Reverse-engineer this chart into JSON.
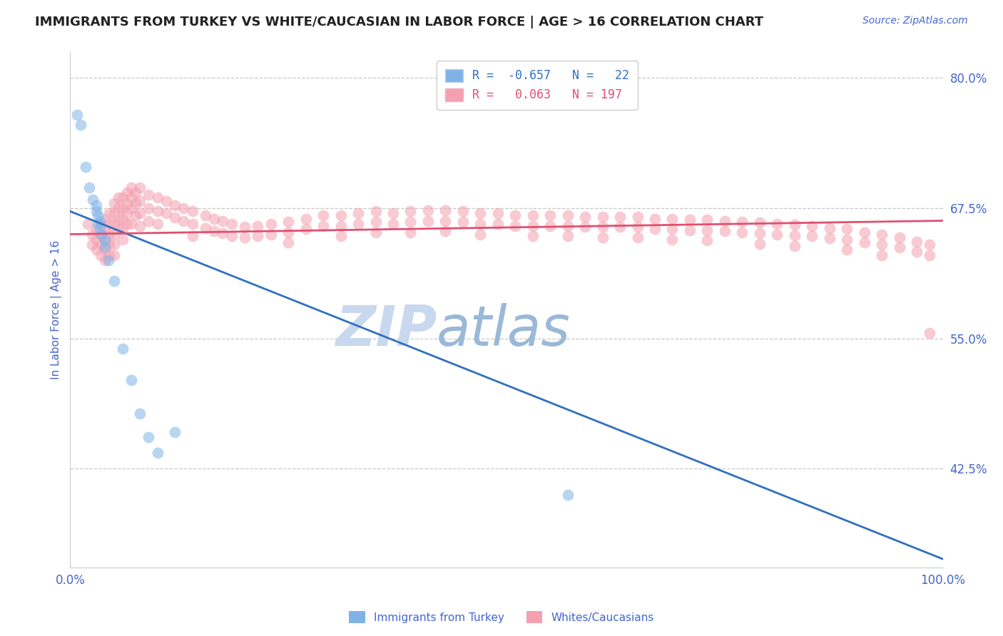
{
  "title": "IMMIGRANTS FROM TURKEY VS WHITE/CAUCASIAN IN LABOR FORCE | AGE > 16 CORRELATION CHART",
  "source_text": "Source: ZipAtlas.com",
  "ylabel": "In Labor Force | Age > 16",
  "xlim": [
    0.0,
    1.0
  ],
  "ylim": [
    0.33,
    0.825
  ],
  "yticks": [
    0.425,
    0.55,
    0.675,
    0.8
  ],
  "ytick_labels": [
    "42.5%",
    "55.0%",
    "67.5%",
    "80.0%"
  ],
  "xtick_labels": [
    "0.0%",
    "100.0%"
  ],
  "xticks": [
    0.0,
    1.0
  ],
  "blue_dots": [
    [
      0.008,
      0.765
    ],
    [
      0.012,
      0.755
    ],
    [
      0.018,
      0.715
    ],
    [
      0.022,
      0.695
    ],
    [
      0.026,
      0.683
    ],
    [
      0.03,
      0.678
    ],
    [
      0.03,
      0.672
    ],
    [
      0.032,
      0.668
    ],
    [
      0.032,
      0.66
    ],
    [
      0.034,
      0.663
    ],
    [
      0.034,
      0.655
    ],
    [
      0.036,
      0.65
    ],
    [
      0.04,
      0.645
    ],
    [
      0.04,
      0.638
    ],
    [
      0.044,
      0.625
    ],
    [
      0.05,
      0.605
    ],
    [
      0.06,
      0.54
    ],
    [
      0.07,
      0.51
    ],
    [
      0.08,
      0.478
    ],
    [
      0.09,
      0.455
    ],
    [
      0.1,
      0.44
    ],
    [
      0.12,
      0.46
    ],
    [
      0.57,
      0.4
    ]
  ],
  "pink_dots": [
    [
      0.02,
      0.66
    ],
    [
      0.025,
      0.65
    ],
    [
      0.025,
      0.64
    ],
    [
      0.03,
      0.655
    ],
    [
      0.03,
      0.645
    ],
    [
      0.03,
      0.635
    ],
    [
      0.035,
      0.66
    ],
    [
      0.035,
      0.65
    ],
    [
      0.035,
      0.64
    ],
    [
      0.035,
      0.63
    ],
    [
      0.04,
      0.665
    ],
    [
      0.04,
      0.655
    ],
    [
      0.04,
      0.645
    ],
    [
      0.04,
      0.635
    ],
    [
      0.04,
      0.625
    ],
    [
      0.045,
      0.67
    ],
    [
      0.045,
      0.66
    ],
    [
      0.045,
      0.65
    ],
    [
      0.045,
      0.64
    ],
    [
      0.045,
      0.63
    ],
    [
      0.05,
      0.68
    ],
    [
      0.05,
      0.67
    ],
    [
      0.05,
      0.66
    ],
    [
      0.05,
      0.65
    ],
    [
      0.05,
      0.64
    ],
    [
      0.05,
      0.63
    ],
    [
      0.055,
      0.685
    ],
    [
      0.055,
      0.675
    ],
    [
      0.055,
      0.665
    ],
    [
      0.055,
      0.655
    ],
    [
      0.06,
      0.685
    ],
    [
      0.06,
      0.675
    ],
    [
      0.06,
      0.665
    ],
    [
      0.06,
      0.655
    ],
    [
      0.06,
      0.645
    ],
    [
      0.065,
      0.69
    ],
    [
      0.065,
      0.68
    ],
    [
      0.065,
      0.67
    ],
    [
      0.065,
      0.66
    ],
    [
      0.07,
      0.695
    ],
    [
      0.07,
      0.685
    ],
    [
      0.07,
      0.675
    ],
    [
      0.07,
      0.66
    ],
    [
      0.075,
      0.69
    ],
    [
      0.075,
      0.68
    ],
    [
      0.075,
      0.668
    ],
    [
      0.08,
      0.695
    ],
    [
      0.08,
      0.682
    ],
    [
      0.08,
      0.67
    ],
    [
      0.08,
      0.658
    ],
    [
      0.09,
      0.688
    ],
    [
      0.09,
      0.675
    ],
    [
      0.09,
      0.663
    ],
    [
      0.1,
      0.685
    ],
    [
      0.1,
      0.672
    ],
    [
      0.1,
      0.66
    ],
    [
      0.11,
      0.682
    ],
    [
      0.11,
      0.67
    ],
    [
      0.12,
      0.678
    ],
    [
      0.12,
      0.666
    ],
    [
      0.13,
      0.675
    ],
    [
      0.13,
      0.663
    ],
    [
      0.14,
      0.672
    ],
    [
      0.14,
      0.66
    ],
    [
      0.14,
      0.648
    ],
    [
      0.155,
      0.668
    ],
    [
      0.155,
      0.656
    ],
    [
      0.165,
      0.665
    ],
    [
      0.165,
      0.653
    ],
    [
      0.175,
      0.663
    ],
    [
      0.175,
      0.651
    ],
    [
      0.185,
      0.66
    ],
    [
      0.185,
      0.648
    ],
    [
      0.2,
      0.657
    ],
    [
      0.2,
      0.647
    ],
    [
      0.215,
      0.658
    ],
    [
      0.215,
      0.648
    ],
    [
      0.23,
      0.66
    ],
    [
      0.23,
      0.65
    ],
    [
      0.25,
      0.662
    ],
    [
      0.25,
      0.652
    ],
    [
      0.25,
      0.642
    ],
    [
      0.27,
      0.665
    ],
    [
      0.27,
      0.655
    ],
    [
      0.29,
      0.668
    ],
    [
      0.29,
      0.658
    ],
    [
      0.31,
      0.668
    ],
    [
      0.31,
      0.658
    ],
    [
      0.31,
      0.648
    ],
    [
      0.33,
      0.67
    ],
    [
      0.33,
      0.66
    ],
    [
      0.35,
      0.672
    ],
    [
      0.35,
      0.662
    ],
    [
      0.35,
      0.652
    ],
    [
      0.37,
      0.67
    ],
    [
      0.37,
      0.66
    ],
    [
      0.39,
      0.672
    ],
    [
      0.39,
      0.662
    ],
    [
      0.39,
      0.652
    ],
    [
      0.41,
      0.673
    ],
    [
      0.41,
      0.663
    ],
    [
      0.43,
      0.673
    ],
    [
      0.43,
      0.663
    ],
    [
      0.43,
      0.653
    ],
    [
      0.45,
      0.672
    ],
    [
      0.45,
      0.662
    ],
    [
      0.47,
      0.67
    ],
    [
      0.47,
      0.66
    ],
    [
      0.47,
      0.65
    ],
    [
      0.49,
      0.67
    ],
    [
      0.49,
      0.66
    ],
    [
      0.51,
      0.668
    ],
    [
      0.51,
      0.658
    ],
    [
      0.53,
      0.668
    ],
    [
      0.53,
      0.658
    ],
    [
      0.53,
      0.648
    ],
    [
      0.55,
      0.668
    ],
    [
      0.55,
      0.658
    ],
    [
      0.57,
      0.668
    ],
    [
      0.57,
      0.658
    ],
    [
      0.57,
      0.648
    ],
    [
      0.59,
      0.667
    ],
    [
      0.59,
      0.657
    ],
    [
      0.61,
      0.667
    ],
    [
      0.61,
      0.657
    ],
    [
      0.61,
      0.647
    ],
    [
      0.63,
      0.667
    ],
    [
      0.63,
      0.657
    ],
    [
      0.65,
      0.667
    ],
    [
      0.65,
      0.657
    ],
    [
      0.65,
      0.647
    ],
    [
      0.67,
      0.665
    ],
    [
      0.67,
      0.655
    ],
    [
      0.69,
      0.665
    ],
    [
      0.69,
      0.655
    ],
    [
      0.69,
      0.645
    ],
    [
      0.71,
      0.664
    ],
    [
      0.71,
      0.654
    ],
    [
      0.73,
      0.664
    ],
    [
      0.73,
      0.654
    ],
    [
      0.73,
      0.644
    ],
    [
      0.75,
      0.663
    ],
    [
      0.75,
      0.653
    ],
    [
      0.77,
      0.662
    ],
    [
      0.77,
      0.652
    ],
    [
      0.79,
      0.661
    ],
    [
      0.79,
      0.651
    ],
    [
      0.79,
      0.641
    ],
    [
      0.81,
      0.66
    ],
    [
      0.81,
      0.65
    ],
    [
      0.83,
      0.659
    ],
    [
      0.83,
      0.649
    ],
    [
      0.83,
      0.639
    ],
    [
      0.85,
      0.658
    ],
    [
      0.85,
      0.648
    ],
    [
      0.87,
      0.656
    ],
    [
      0.87,
      0.646
    ],
    [
      0.89,
      0.655
    ],
    [
      0.89,
      0.645
    ],
    [
      0.89,
      0.635
    ],
    [
      0.91,
      0.652
    ],
    [
      0.91,
      0.642
    ],
    [
      0.93,
      0.65
    ],
    [
      0.93,
      0.64
    ],
    [
      0.93,
      0.63
    ],
    [
      0.95,
      0.647
    ],
    [
      0.95,
      0.637
    ],
    [
      0.97,
      0.643
    ],
    [
      0.97,
      0.633
    ],
    [
      0.985,
      0.64
    ],
    [
      0.985,
      0.63
    ],
    [
      0.985,
      0.555
    ]
  ],
  "blue_line_x": [
    0.0,
    1.0
  ],
  "blue_line_y": [
    0.672,
    0.338
  ],
  "pink_line_x": [
    0.0,
    1.0
  ],
  "pink_line_y": [
    0.65,
    0.663
  ],
  "blue_dot_color": "#7fb3e8",
  "pink_dot_color": "#f4a0b0",
  "blue_line_color": "#3070c0",
  "pink_line_color": "#e05070",
  "background_color": "#ffffff",
  "grid_color": "#c8c8c8",
  "title_color": "#222222",
  "axis_label_color": "#4466cc",
  "tick_color": "#4466cc",
  "watermark_zip_color": "#c8d8ee",
  "watermark_atlas_color": "#9ab8d8",
  "dot_size": 130,
  "dot_alpha": 0.55,
  "title_fontsize": 13,
  "source_fontsize": 10,
  "axis_label_fontsize": 11,
  "tick_fontsize": 12
}
